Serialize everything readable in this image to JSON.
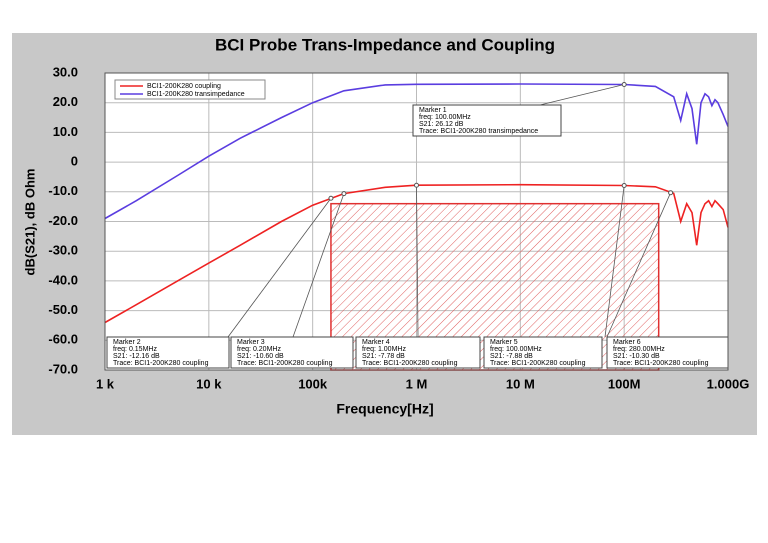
{
  "chart_data": {
    "type": "line",
    "title": "BCI Probe Trans-Impedance and Coupling",
    "x_label": "Frequency[Hz]",
    "y_label": "dB(S21), dB Ohm",
    "log_x": true,
    "grid": true,
    "legend": "upper-left",
    "xlim": [
      1000,
      1000000000
    ],
    "xticks": [
      {
        "value": 1000,
        "label": "1  k"
      },
      {
        "value": 10000,
        "label": "10 k"
      },
      {
        "value": 100000,
        "label": "100k"
      },
      {
        "value": 1000000,
        "label": "1 M"
      },
      {
        "value": 10000000,
        "label": "10 M"
      },
      {
        "value": 100000000,
        "label": "100M"
      },
      {
        "value": 1000000000,
        "label": "1.000G"
      }
    ],
    "ylim": [
      -70,
      30
    ],
    "yticks": [
      {
        "value": 30,
        "label": "30.0"
      },
      {
        "value": 20,
        "label": "20.0"
      },
      {
        "value": 10,
        "label": "10.0"
      },
      0,
      {
        "value": -10,
        "label": "-10.0"
      },
      {
        "value": -20,
        "label": "-20.0"
      },
      {
        "value": -30,
        "label": "-30.0"
      },
      {
        "value": -40,
        "label": "-40.0"
      },
      {
        "value": -50,
        "label": "-50.0"
      },
      {
        "value": -60,
        "label": "-60.0"
      },
      {
        "value": -70,
        "label": "-70.0"
      }
    ],
    "x": [
      1000,
      2000,
      5000,
      10000,
      20000,
      50000,
      100000,
      200000,
      500000,
      1000000,
      10000000,
      100000000,
      200000000,
      300000000,
      350000000,
      400000000,
      450000000,
      500000000,
      550000000,
      600000000,
      650000000,
      700000000,
      750000000,
      800000000,
      900000000,
      1000000000
    ],
    "series": [
      {
        "name": "BCI1-200K280 coupling",
        "color": "#ee2222",
        "values": [
          -54,
          -48,
          -40,
          -34,
          -28,
          -20,
          -14.5,
          -10.6,
          -8.5,
          -7.78,
          -7.6,
          -7.88,
          -8.3,
          -10.5,
          -20,
          -14,
          -17,
          -28,
          -17,
          -14,
          -13,
          -15,
          -13,
          -14,
          -16,
          -22
        ]
      },
      {
        "name": "BCI1-200K280 transimpedance",
        "color": "#5a3de0",
        "values": [
          -19,
          -13,
          -4.5,
          2,
          8,
          15,
          20,
          24,
          26,
          26.2,
          26.3,
          26.12,
          25.5,
          22,
          14,
          23,
          18,
          6,
          20,
          23,
          22,
          19,
          21,
          20,
          16,
          12
        ]
      }
    ],
    "shaded_region": {
      "x": [
        150000,
        215000000
      ],
      "y": [
        -70,
        -14
      ],
      "color": "#e03030"
    },
    "markers": [
      {
        "label": "Marker 1",
        "freq": "freq: 100.00MHz",
        "s21": "S21: 26.12 dB",
        "trace": "Trace: BCI1-200K280 transimpedance",
        "x": 100000000,
        "value": 26.12
      },
      {
        "label": "Marker 2",
        "freq": "freq: 0.15MHz",
        "s21": "S21: -12.16 dB",
        "trace": "Trace: BCI1-200K280 coupling",
        "x": 150000,
        "value": -12.16
      },
      {
        "label": "Marker 3",
        "freq": "freq: 0.20MHz",
        "s21": "S21: -10.60 dB",
        "trace": "Trace: BCI1-200K280 coupling",
        "x": 200000,
        "value": -10.6
      },
      {
        "label": "Marker 4",
        "freq": "freq: 1.00MHz",
        "s21": "S21: -7.78 dB",
        "trace": "Trace: BCI1-200K280 coupling",
        "x": 1000000,
        "value": -7.78
      },
      {
        "label": "Marker 5",
        "freq": "freq: 100.00MHz",
        "s21": "S21: -7.88 dB",
        "trace": "Trace: BCI1-200K280 coupling",
        "x": 100000000,
        "value": -7.88
      },
      {
        "label": "Marker 6",
        "freq": "freq: 280.00MHz",
        "s21": "S21: -10.30 dB",
        "trace": "Trace: BCI1-200K280 coupling",
        "x": 280000000,
        "value": -10.3
      }
    ]
  }
}
